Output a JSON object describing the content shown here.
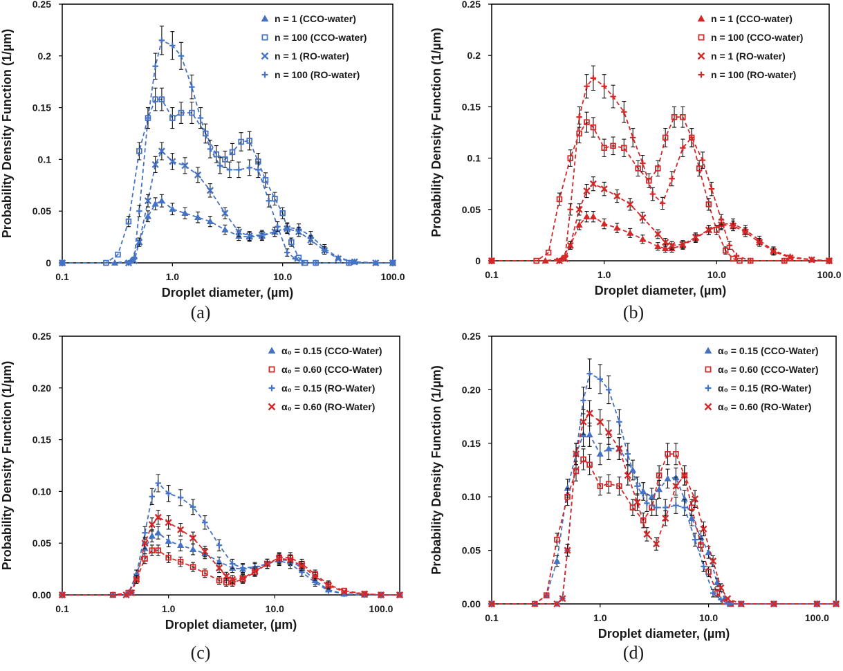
{
  "chart_data": [
    {
      "panel": "(a)",
      "type": "scatter",
      "xscale": "log",
      "xlim": [
        0.1,
        100
      ],
      "ylim": [
        0,
        0.25
      ],
      "xticks": [
        "0.1",
        "1.0",
        "10.0",
        "100.0"
      ],
      "yticks": [
        "0",
        "0.05",
        "0.1",
        "0.15",
        "0.2",
        "0.25"
      ],
      "xlabel": "Droplet diameter, (µm)",
      "ylabel": "Probability Density Function (1/µm)",
      "legend_position": "top-right",
      "series": [
        {
          "name": "n = 1 (CCO-water)",
          "marker": "triangle",
          "color": "#4472C4",
          "x": [
            0.1,
            0.3,
            0.42,
            0.5,
            0.6,
            0.7,
            0.8,
            1.0,
            1.3,
            1.7,
            2.2,
            3.0,
            4.0,
            5.0,
            6.5,
            8.5,
            11,
            14,
            18,
            24,
            32,
            45,
            70,
            100
          ],
          "y": [
            0,
            0,
            0.002,
            0.02,
            0.045,
            0.057,
            0.06,
            0.052,
            0.048,
            0.044,
            0.04,
            0.032,
            0.026,
            0.025,
            0.026,
            0.03,
            0.034,
            0.033,
            0.026,
            0.014,
            0.005,
            0.001,
            0,
            0
          ]
        },
        {
          "name": "n = 100 (CCO-water)",
          "marker": "square",
          "color": "#4472C4",
          "x": [
            0.1,
            0.25,
            0.32,
            0.4,
            0.5,
            0.6,
            0.7,
            0.8,
            1.0,
            1.2,
            1.5,
            2.0,
            2.5,
            3.0,
            3.5,
            4.2,
            5.0,
            6.0,
            7.0,
            8.5,
            10,
            12,
            14,
            16,
            20,
            40,
            100
          ],
          "y": [
            0,
            0,
            0.008,
            0.04,
            0.108,
            0.14,
            0.158,
            0.158,
            0.14,
            0.145,
            0.145,
            0.125,
            0.105,
            0.1,
            0.107,
            0.117,
            0.118,
            0.098,
            0.08,
            0.062,
            0.048,
            0.02,
            0.005,
            0,
            0,
            0,
            0
          ]
        },
        {
          "name": "n = 1 (RO-water)",
          "marker": "x",
          "color": "#4472C4",
          "x": [
            0.1,
            0.4,
            0.45,
            0.5,
            0.6,
            0.7,
            0.8,
            1.0,
            1.3,
            1.7,
            2.2,
            3.0,
            4.0,
            5.0,
            6.5,
            8.5,
            11,
            14,
            18,
            24,
            32,
            45,
            70,
            100
          ],
          "y": [
            0,
            0,
            0.002,
            0.02,
            0.06,
            0.095,
            0.108,
            0.098,
            0.094,
            0.085,
            0.07,
            0.048,
            0.03,
            0.026,
            0.027,
            0.03,
            0.033,
            0.03,
            0.022,
            0.012,
            0.004,
            0.001,
            0,
            0
          ]
        },
        {
          "name": "n = 100 (RO-water)",
          "marker": "plus",
          "color": "#4472C4",
          "x": [
            0.1,
            0.4,
            0.45,
            0.5,
            0.6,
            0.7,
            0.8,
            1.0,
            1.2,
            1.5,
            1.8,
            2.2,
            2.7,
            3.3,
            4.0,
            5.0,
            6.0,
            7.5,
            9.0,
            11,
            13,
            15,
            20,
            40,
            100
          ],
          "y": [
            0,
            0,
            0.005,
            0.05,
            0.14,
            0.19,
            0.215,
            0.21,
            0.2,
            0.17,
            0.14,
            0.11,
            0.094,
            0.09,
            0.09,
            0.092,
            0.09,
            0.06,
            0.035,
            0.01,
            0.004,
            0,
            0,
            0,
            0
          ]
        }
      ]
    },
    {
      "panel": "(b)",
      "type": "scatter",
      "xscale": "log",
      "xlim": [
        0.1,
        100
      ],
      "ylim": [
        0,
        0.25
      ],
      "xticks": [
        "0.1",
        "1.0",
        "10.0",
        "100.0"
      ],
      "yticks": [
        "0",
        "0.05",
        "0.1",
        "0.15",
        "0.2",
        "0.25"
      ],
      "xlabel": "Droplet diameter, (µm)",
      "ylabel": "Probability Density Function (1/µm)",
      "legend_position": "top-right",
      "series": [
        {
          "name": "n = 1 (CCO-water)",
          "marker": "triangle",
          "color": "#D62728",
          "x": [
            0.1,
            0.3,
            0.42,
            0.5,
            0.6,
            0.7,
            0.8,
            1.0,
            1.3,
            1.7,
            2.2,
            3.0,
            3.5,
            4.0,
            5.0,
            6.5,
            8.5,
            11,
            14,
            18,
            24,
            32,
            45,
            70,
            100
          ],
          "y": [
            0,
            0,
            0.002,
            0.015,
            0.035,
            0.043,
            0.043,
            0.036,
            0.032,
            0.027,
            0.021,
            0.014,
            0.012,
            0.012,
            0.015,
            0.022,
            0.03,
            0.036,
            0.036,
            0.03,
            0.02,
            0.01,
            0.004,
            0.001,
            0
          ]
        },
        {
          "name": "n = 100 (CCO-water)",
          "marker": "square",
          "color": "#D62728",
          "x": [
            0.1,
            0.25,
            0.32,
            0.4,
            0.5,
            0.6,
            0.7,
            0.8,
            1.0,
            1.2,
            1.5,
            2.0,
            2.5,
            3.0,
            3.5,
            4.2,
            5.0,
            6.0,
            7.0,
            8.5,
            10,
            12,
            14,
            16,
            20,
            40,
            100
          ],
          "y": [
            0,
            0,
            0.008,
            0.06,
            0.1,
            0.124,
            0.135,
            0.13,
            0.11,
            0.112,
            0.11,
            0.09,
            0.078,
            0.09,
            0.12,
            0.14,
            0.14,
            0.12,
            0.09,
            0.055,
            0.03,
            0.01,
            0.002,
            0,
            0,
            0,
            0
          ]
        },
        {
          "name": "n = 1 (RO-water)",
          "marker": "x",
          "color": "#D62728",
          "x": [
            0.1,
            0.4,
            0.45,
            0.5,
            0.6,
            0.7,
            0.8,
            1.0,
            1.3,
            1.7,
            2.2,
            3.0,
            3.5,
            4.0,
            5.0,
            6.5,
            8.5,
            11,
            14,
            18,
            24,
            32,
            45,
            70,
            100
          ],
          "y": [
            0,
            0,
            0.002,
            0.015,
            0.05,
            0.068,
            0.075,
            0.07,
            0.063,
            0.055,
            0.042,
            0.026,
            0.018,
            0.015,
            0.016,
            0.023,
            0.03,
            0.035,
            0.034,
            0.028,
            0.018,
            0.009,
            0.003,
            0.001,
            0
          ]
        },
        {
          "name": "n = 100 (RO-water)",
          "marker": "plus",
          "color": "#D62728",
          "x": [
            0.1,
            0.4,
            0.45,
            0.5,
            0.6,
            0.7,
            0.8,
            1.0,
            1.2,
            1.5,
            1.8,
            2.2,
            2.7,
            3.3,
            4.0,
            5.0,
            6.0,
            7.5,
            9.0,
            11,
            13,
            15,
            20,
            40,
            100
          ],
          "y": [
            0,
            0,
            0.005,
            0.05,
            0.14,
            0.17,
            0.178,
            0.17,
            0.16,
            0.145,
            0.12,
            0.095,
            0.065,
            0.056,
            0.08,
            0.11,
            0.12,
            0.098,
            0.07,
            0.04,
            0.015,
            0.005,
            0,
            0,
            0
          ]
        }
      ]
    },
    {
      "panel": "(c)",
      "type": "scatter",
      "xscale": "log",
      "xlim": [
        0.1,
        150
      ],
      "ylim": [
        0,
        0.25
      ],
      "xticks": [
        "0.1",
        "1.0",
        "10.0",
        "100.0"
      ],
      "yticks": [
        "0.00",
        "0.05",
        "0.10",
        "0.15",
        "0.20",
        "0.25"
      ],
      "xlabel": "Droplet diameter, (µm)",
      "ylabel": "Probability Density Function (1/µm)",
      "legend_position": "top-right",
      "series": [
        {
          "name": "α₀ = 0.15 (CCO-Water)",
          "marker": "triangle",
          "color": "#4472C4",
          "x": [
            0.1,
            0.3,
            0.42,
            0.5,
            0.6,
            0.7,
            0.8,
            1.0,
            1.3,
            1.7,
            2.2,
            3.0,
            4.0,
            5.0,
            6.5,
            8.5,
            11,
            14,
            18,
            24,
            32,
            45,
            70,
            100,
            150
          ],
          "y": [
            0,
            0,
            0.002,
            0.02,
            0.045,
            0.057,
            0.06,
            0.052,
            0.048,
            0.044,
            0.04,
            0.032,
            0.026,
            0.025,
            0.026,
            0.03,
            0.034,
            0.033,
            0.026,
            0.014,
            0.005,
            0.001,
            0,
            0,
            0
          ]
        },
        {
          "name": "α₀ = 0.60 (CCO-Water)",
          "marker": "square",
          "color": "#D62728",
          "x": [
            0.1,
            0.3,
            0.42,
            0.5,
            0.6,
            0.7,
            0.8,
            1.0,
            1.3,
            1.7,
            2.2,
            3.0,
            3.5,
            4.0,
            5.0,
            6.5,
            8.5,
            11,
            14,
            18,
            24,
            32,
            45,
            70,
            100,
            150
          ],
          "y": [
            0,
            0,
            0.002,
            0.015,
            0.035,
            0.043,
            0.043,
            0.036,
            0.032,
            0.027,
            0.021,
            0.014,
            0.012,
            0.012,
            0.015,
            0.022,
            0.03,
            0.036,
            0.036,
            0.03,
            0.02,
            0.01,
            0.004,
            0.001,
            0,
            0
          ]
        },
        {
          "name": "α₀ = 0.15 (RO-Water)",
          "marker": "plus",
          "color": "#4472C4",
          "x": [
            0.1,
            0.4,
            0.45,
            0.5,
            0.6,
            0.7,
            0.8,
            1.0,
            1.3,
            1.7,
            2.2,
            3.0,
            4.0,
            5.0,
            6.5,
            8.5,
            11,
            14,
            18,
            24,
            32,
            45,
            70,
            100,
            150
          ],
          "y": [
            0,
            0,
            0.002,
            0.02,
            0.06,
            0.095,
            0.108,
            0.098,
            0.094,
            0.085,
            0.07,
            0.048,
            0.03,
            0.026,
            0.027,
            0.03,
            0.033,
            0.03,
            0.022,
            0.012,
            0.004,
            0.001,
            0,
            0,
            0
          ]
        },
        {
          "name": "α₀ = 0.60 (RO-Water)",
          "marker": "x",
          "color": "#D62728",
          "x": [
            0.1,
            0.4,
            0.45,
            0.5,
            0.6,
            0.7,
            0.8,
            1.0,
            1.3,
            1.7,
            2.2,
            3.0,
            3.5,
            4.0,
            5.0,
            6.5,
            8.5,
            11,
            14,
            18,
            24,
            32,
            45,
            70,
            100,
            150
          ],
          "y": [
            0,
            0,
            0.002,
            0.015,
            0.05,
            0.068,
            0.075,
            0.07,
            0.063,
            0.055,
            0.042,
            0.026,
            0.018,
            0.015,
            0.016,
            0.023,
            0.03,
            0.035,
            0.034,
            0.028,
            0.018,
            0.009,
            0.003,
            0.001,
            0,
            0
          ]
        }
      ]
    },
    {
      "panel": "(d)",
      "type": "scatter",
      "xscale": "log",
      "xlim": [
        0.1,
        150
      ],
      "ylim": [
        0,
        0.25
      ],
      "xticks": [
        "0.1",
        "1.0",
        "10.0",
        "100.0"
      ],
      "yticks": [
        "0.00",
        "0.05",
        "0.10",
        "0.15",
        "0.20",
        "0.25"
      ],
      "xlabel": "Droplet diameter, (µm)",
      "ylabel": "Probability Density Function (1/µm)",
      "legend_position": "top-right",
      "series": [
        {
          "name": "α₀ = 0.15 (CCO-Water)",
          "marker": "triangle",
          "color": "#4472C4",
          "x": [
            0.1,
            0.25,
            0.32,
            0.4,
            0.5,
            0.6,
            0.7,
            0.8,
            1.0,
            1.2,
            1.5,
            2.0,
            2.5,
            3.0,
            3.5,
            4.2,
            5.0,
            6.0,
            7.0,
            8.5,
            10,
            12,
            14,
            16,
            20,
            40,
            100,
            150
          ],
          "y": [
            0,
            0,
            0.008,
            0.04,
            0.108,
            0.14,
            0.158,
            0.158,
            0.14,
            0.145,
            0.145,
            0.125,
            0.105,
            0.1,
            0.107,
            0.117,
            0.118,
            0.098,
            0.08,
            0.062,
            0.048,
            0.02,
            0.005,
            0,
            0,
            0,
            0,
            0
          ]
        },
        {
          "name": "α₀ = 0.60 (CCO-Water)",
          "marker": "square",
          "color": "#D62728",
          "x": [
            0.1,
            0.25,
            0.32,
            0.4,
            0.5,
            0.6,
            0.7,
            0.8,
            1.0,
            1.2,
            1.5,
            2.0,
            2.5,
            3.0,
            3.5,
            4.2,
            5.0,
            6.0,
            7.0,
            8.5,
            10,
            12,
            14,
            16,
            20,
            40,
            100,
            150
          ],
          "y": [
            0,
            0,
            0.008,
            0.06,
            0.1,
            0.124,
            0.135,
            0.13,
            0.11,
            0.112,
            0.11,
            0.09,
            0.078,
            0.09,
            0.12,
            0.14,
            0.14,
            0.12,
            0.09,
            0.055,
            0.03,
            0.01,
            0.002,
            0,
            0,
            0,
            0,
            0
          ]
        },
        {
          "name": "α₀ = 0.15 (RO-Water)",
          "marker": "plus",
          "color": "#4472C4",
          "x": [
            0.1,
            0.4,
            0.45,
            0.5,
            0.6,
            0.7,
            0.8,
            1.0,
            1.2,
            1.5,
            1.8,
            2.2,
            2.7,
            3.3,
            4.0,
            5.0,
            6.0,
            7.5,
            9.0,
            11,
            13,
            15,
            20,
            40,
            100,
            150
          ],
          "y": [
            0,
            0,
            0.005,
            0.05,
            0.14,
            0.19,
            0.215,
            0.21,
            0.2,
            0.17,
            0.14,
            0.11,
            0.094,
            0.09,
            0.09,
            0.092,
            0.09,
            0.06,
            0.035,
            0.01,
            0.004,
            0,
            0,
            0,
            0,
            0
          ]
        },
        {
          "name": "α₀ = 0.60 (RO-Water)",
          "marker": "x",
          "color": "#D62728",
          "x": [
            0.1,
            0.4,
            0.45,
            0.5,
            0.6,
            0.7,
            0.8,
            1.0,
            1.2,
            1.5,
            1.8,
            2.2,
            2.7,
            3.3,
            4.0,
            5.0,
            6.0,
            7.5,
            9.0,
            11,
            13,
            15,
            20,
            40,
            100,
            150
          ],
          "y": [
            0,
            0,
            0.005,
            0.05,
            0.14,
            0.17,
            0.178,
            0.17,
            0.16,
            0.145,
            0.12,
            0.095,
            0.065,
            0.056,
            0.08,
            0.11,
            0.12,
            0.098,
            0.07,
            0.04,
            0.015,
            0.005,
            0,
            0,
            0,
            0
          ]
        }
      ]
    }
  ]
}
